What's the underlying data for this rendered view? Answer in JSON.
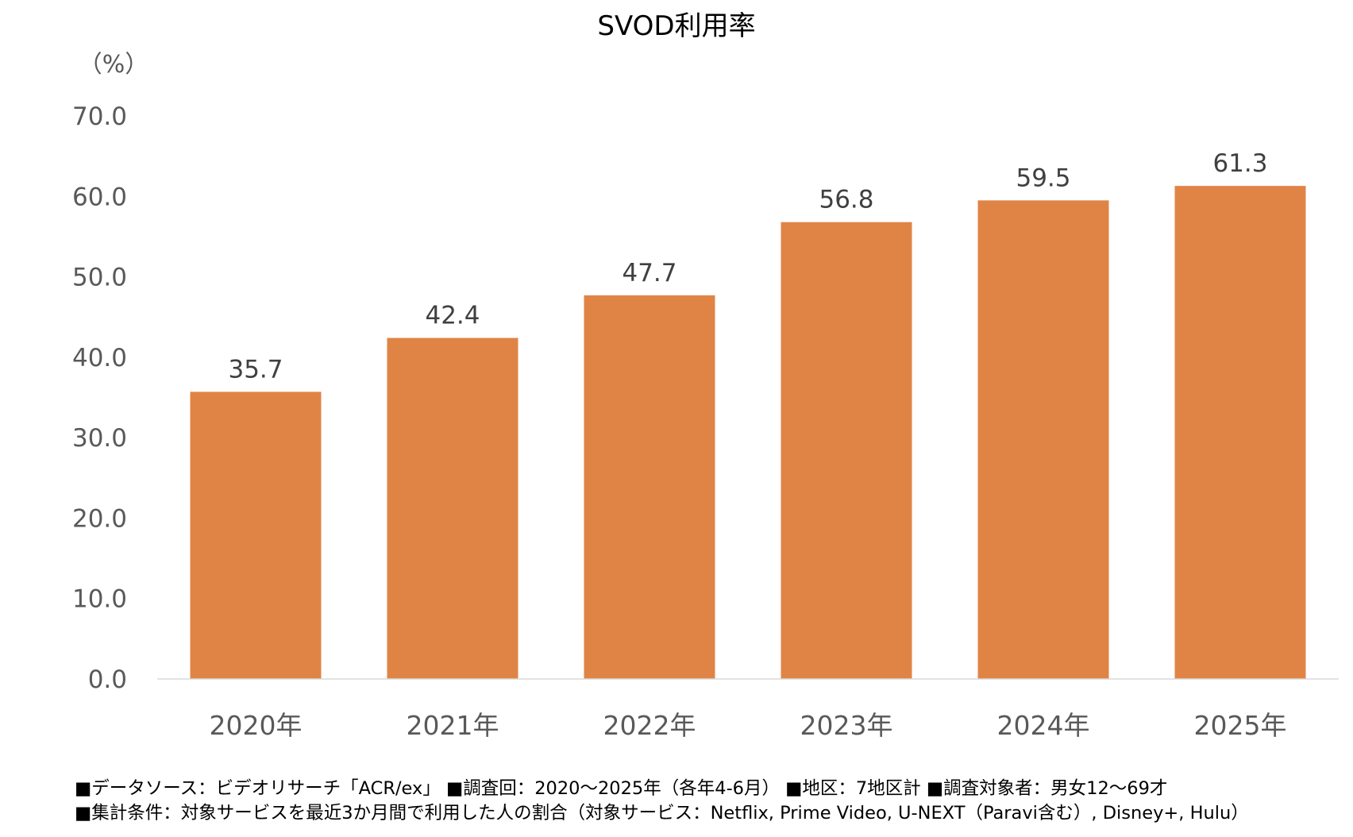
{
  "chart_data": {
    "type": "bar",
    "title": "SVOD利用率",
    "unit_label": "（%）",
    "categories": [
      "2020年",
      "2021年",
      "2022年",
      "2023年",
      "2024年",
      "2025年"
    ],
    "values": [
      35.7,
      42.4,
      47.7,
      56.8,
      59.5,
      61.3
    ],
    "value_labels": [
      "35.7",
      "42.4",
      "47.7",
      "56.8",
      "59.5",
      "61.3"
    ],
    "y_ticks": [
      "0.0",
      "10.0",
      "20.0",
      "30.0",
      "40.0",
      "50.0",
      "60.0",
      "70.0"
    ],
    "ylim": [
      0,
      70
    ],
    "grid": false,
    "legend": "none",
    "bar_color": "#E08446"
  },
  "notes": {
    "line1": "■データソース：ビデオリサーチ「ACR/ex」 ■調査回：2020～2025年（各年4-6月） ■地区：7地区計 ■調査対象者：男女12～69才",
    "line2": "■集計条件：対象サービスを最近3か月間で利用した人の割合（対象サービス：Netflix, Prime Video, U-NEXT（Paravi含む）, Disney+, Hulu）"
  }
}
